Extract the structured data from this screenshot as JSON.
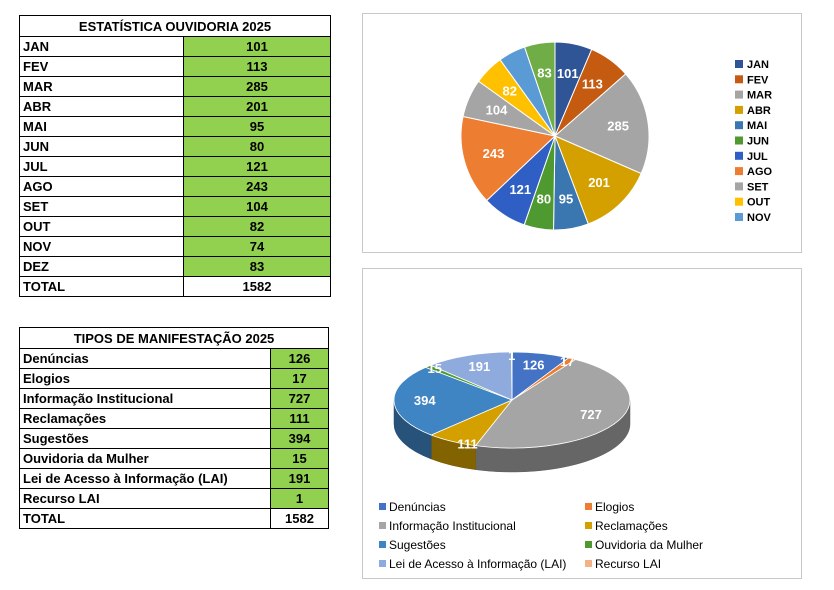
{
  "table1": {
    "title": "ESTATÍSTICA OUVIDORIA 2025",
    "rows": [
      {
        "label": "JAN",
        "value": "101"
      },
      {
        "label": "FEV",
        "value": "113"
      },
      {
        "label": "MAR",
        "value": "285"
      },
      {
        "label": "ABR",
        "value": "201"
      },
      {
        "label": "MAI",
        "value": "95"
      },
      {
        "label": "JUN",
        "value": "80"
      },
      {
        "label": "JUL",
        "value": "121"
      },
      {
        "label": "AGO",
        "value": "243"
      },
      {
        "label": "SET",
        "value": "104"
      },
      {
        "label": "OUT",
        "value": "82"
      },
      {
        "label": "NOV",
        "value": "74"
      },
      {
        "label": "DEZ",
        "value": "83"
      }
    ],
    "total_label": "TOTAL",
    "total_value": "1582"
  },
  "table2": {
    "title": "TIPOS DE MANIFESTAÇÃO 2025",
    "rows": [
      {
        "label": "Denúncias",
        "value": "126"
      },
      {
        "label": "Elogios",
        "value": "17"
      },
      {
        "label": "Informação Institucional",
        "value": "727"
      },
      {
        "label": "Reclamações",
        "value": "111"
      },
      {
        "label": "Sugestões",
        "value": "394"
      },
      {
        "label": "Ouvidoria da Mulher",
        "value": "15"
      },
      {
        "label": "Lei de Acesso à Informação (LAI)",
        "value": "191"
      },
      {
        "label": "Recurso LAI",
        "value": "1"
      }
    ],
    "total_label": "TOTAL",
    "total_value": "1582"
  },
  "chart_data": [
    {
      "type": "pie",
      "categories": [
        "JAN",
        "FEV",
        "MAR",
        "ABR",
        "MAI",
        "JUN",
        "JUL",
        "AGO",
        "SET",
        "OUT",
        "NOV",
        "DEZ"
      ],
      "values": [
        101,
        113,
        285,
        201,
        95,
        80,
        121,
        243,
        104,
        82,
        74,
        83
      ],
      "legend_entries": [
        "JAN",
        "FEV",
        "MAR",
        "ABR",
        "MAI",
        "JUN",
        "JUL",
        "AGO",
        "SET",
        "OUT",
        "NOV"
      ],
      "data_labels": [
        "101",
        "113",
        "285",
        "201",
        "95",
        "80",
        "121",
        "243",
        "104",
        "82",
        "",
        "83"
      ],
      "colors": [
        "#2f5597",
        "#c55a11",
        "#a5a5a5",
        "#d4a000",
        "#3a77b0",
        "#4e9a30",
        "#2f5fc4",
        "#ed7d31",
        "#a5a5a5",
        "#ffc000",
        "#5b9bd5",
        "#70ad47"
      ],
      "legend_position": "right"
    },
    {
      "type": "pie",
      "style": "3d",
      "categories": [
        "Denúncias",
        "Elogios",
        "Informação Institucional",
        "Reclamações",
        "Sugestões",
        "Ouvidoria da Mulher",
        "Lei de Acesso à Informação (LAI)",
        "Recurso LAI"
      ],
      "values": [
        126,
        17,
        727,
        111,
        394,
        15,
        191,
        1
      ],
      "data_labels": [
        "126",
        "17",
        "727",
        "111",
        "394",
        "15",
        "191",
        "1"
      ],
      "colors": [
        "#4472c4",
        "#ed7d31",
        "#a5a5a5",
        "#d4a000",
        "#3f84c3",
        "#4e9a30",
        "#8faadc",
        "#f4b183"
      ],
      "legend_position": "bottom"
    }
  ]
}
